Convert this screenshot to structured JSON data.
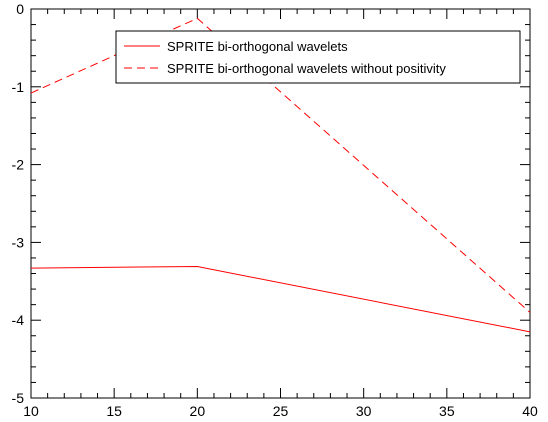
{
  "chart_data": {
    "type": "line",
    "xlim": [
      10,
      40
    ],
    "ylim": [
      -5,
      0
    ],
    "x_ticks": [
      10,
      15,
      20,
      25,
      30,
      35,
      40
    ],
    "y_ticks": [
      0,
      -1,
      -2,
      -3,
      -4,
      -5
    ],
    "x_tick_labels": [
      "10",
      "15",
      "20",
      "25",
      "30",
      "35",
      "40"
    ],
    "y_tick_labels": [
      "0",
      "-1",
      "-2",
      "-3",
      "-4",
      "-5"
    ],
    "grid": false,
    "legend_position": "top-right",
    "series": [
      {
        "name": "SPRITE bi-orthogonal wavelets",
        "style": "solid",
        "color": "#ff0000",
        "x": [
          10,
          20,
          40
        ],
        "y": [
          -3.33,
          -3.31,
          -4.15
        ]
      },
      {
        "name": "SPRITE bi-orthogonal wavelets without positivity",
        "style": "dashed",
        "color": "#ff0000",
        "x": [
          10,
          20,
          40
        ],
        "y": [
          -1.08,
          -0.12,
          -3.9
        ]
      }
    ]
  }
}
